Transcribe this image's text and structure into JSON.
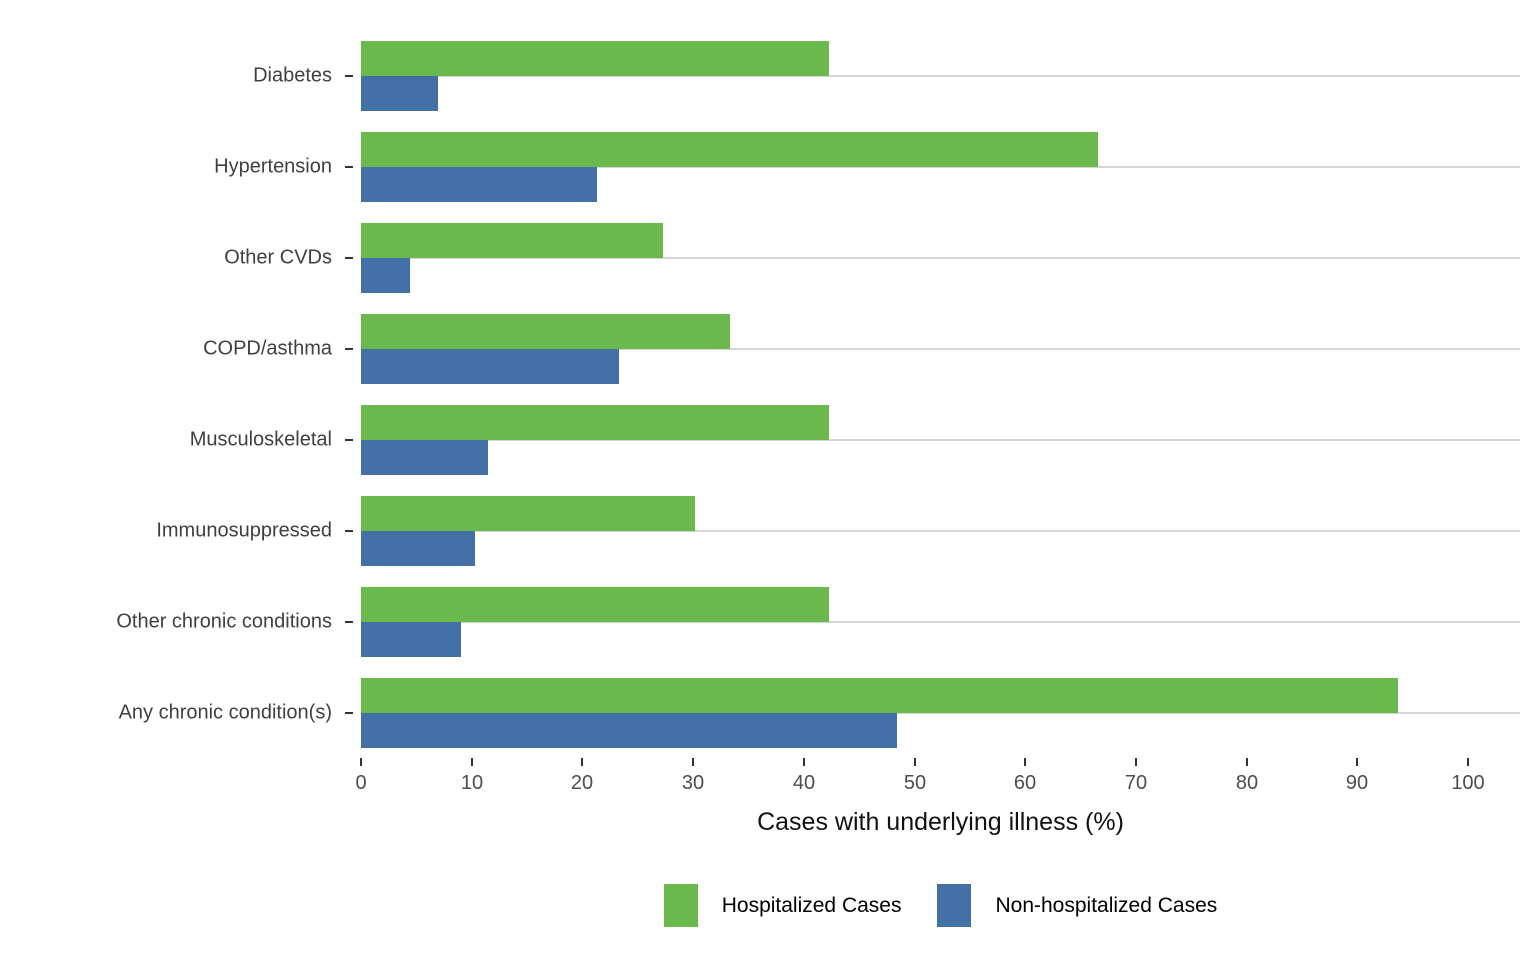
{
  "chart_data": {
    "type": "bar",
    "orientation": "horizontal",
    "title": "",
    "xlabel": "Cases with underlying illness (%)",
    "ylabel": "",
    "xlim": [
      0,
      100
    ],
    "xticks": [
      0,
      10,
      20,
      30,
      40,
      50,
      60,
      70,
      80,
      90,
      100
    ],
    "grid": "one horizontal gridline per category, drawn behind bars",
    "legend_position": "bottom-center",
    "categories": [
      "Diabetes",
      "Hypertension",
      "Other CVDs",
      "COPD/asthma",
      "Musculoskeletal",
      "Immunosuppressed",
      "Other chronic conditions",
      "Any chronic condition(s)"
    ],
    "series": [
      {
        "name": "Hospitalized Cases",
        "color": "#6ab94c",
        "values": [
          42.3,
          66.6,
          27.3,
          33.3,
          42.3,
          30.2,
          42.3,
          93.7
        ]
      },
      {
        "name": "Non-hospitalized Cases",
        "color": "#4470a8",
        "values": [
          7.0,
          21.3,
          4.4,
          23.3,
          11.5,
          10.3,
          9.0,
          48.4
        ]
      }
    ]
  },
  "colors": {
    "hospitalized_green": "#6ab94c",
    "non_hospitalized_blue": "#4470a8",
    "gridline": "#d6d6d6",
    "tick_label": "#4d4d4d",
    "category_label": "#404040",
    "axis_title": "#111111",
    "background": "#ffffff"
  }
}
